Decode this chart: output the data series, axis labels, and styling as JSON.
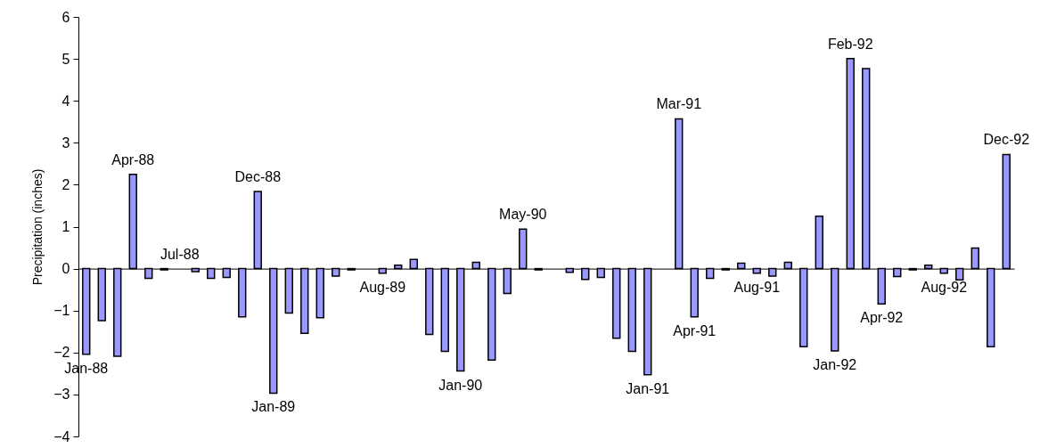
{
  "chart_data": {
    "type": "bar",
    "ylabel": "Precipitation (inches)",
    "categories": [
      "Jan-88",
      null,
      null,
      "Apr-88",
      null,
      null,
      "Jul-88",
      null,
      null,
      null,
      null,
      "Dec-88",
      "Jan-89",
      null,
      null,
      null,
      null,
      null,
      null,
      "Aug-89",
      null,
      null,
      null,
      null,
      "Jan-90",
      null,
      null,
      null,
      "May-90",
      null,
      null,
      null,
      null,
      null,
      null,
      null,
      "Jan-91",
      null,
      "Mar-91",
      "Apr-91",
      null,
      null,
      null,
      "Aug-91",
      null,
      null,
      null,
      null,
      "Jan-92",
      "Feb-92",
      null,
      "Apr-92",
      null,
      null,
      null,
      "Aug-92",
      null,
      null,
      null,
      "Dec-92"
    ],
    "values": [
      -2.04,
      -1.24,
      -2.09,
      2.25,
      -0.23,
      -0.03,
      0,
      -0.07,
      -0.23,
      -0.21,
      -1.15,
      1.84,
      -2.97,
      -1.06,
      -1.54,
      -1.17,
      -0.18,
      -0.03,
      0,
      -0.11,
      0.08,
      0.22,
      -1.57,
      -1.97,
      -2.44,
      0.15,
      -2.18,
      -0.59,
      0.94,
      -0.03,
      0,
      -0.09,
      -0.26,
      -0.21,
      -1.66,
      -1.97,
      -2.53,
      0,
      3.57,
      -1.15,
      -0.23,
      -0.03,
      0.13,
      -0.11,
      -0.18,
      0.15,
      -1.86,
      1.25,
      -1.96,
      5.01,
      4.77,
      -0.84,
      -0.19,
      -0.03,
      0.08,
      -0.11,
      -0.27,
      0.49,
      -1.86,
      2.72
    ],
    "color": "#9999ff",
    "ylim": [
      -4,
      6
    ],
    "yticks": [
      -4,
      -3,
      -2,
      -1,
      0,
      1,
      2,
      3,
      4,
      5,
      6
    ],
    "grid": false
  }
}
